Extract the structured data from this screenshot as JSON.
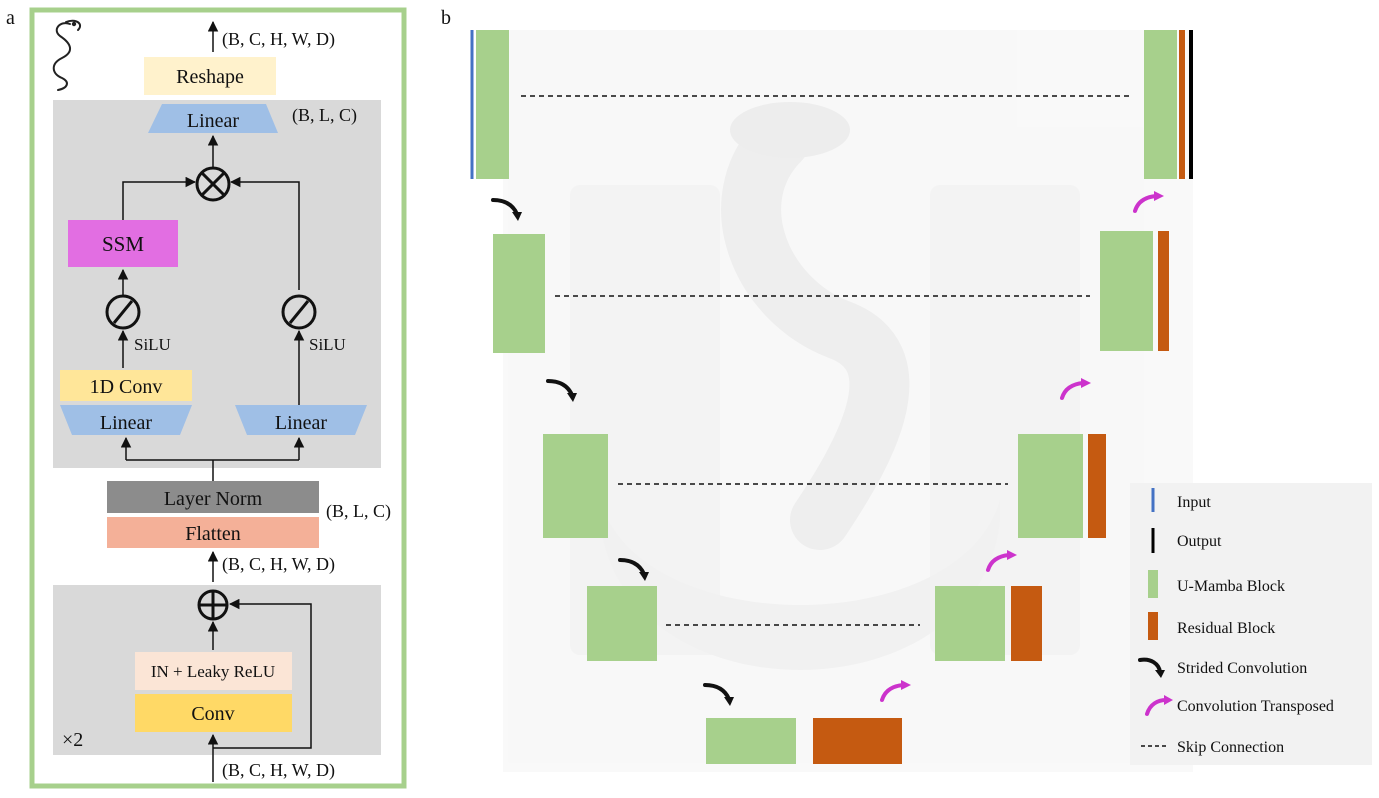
{
  "panel_a": {
    "label": "a",
    "shape_top": "(B, C, H, W, D)",
    "reshape": "Reshape",
    "shape_mamba": "(B, L, C)",
    "linear_top": "Linear",
    "ssm": "SSM",
    "silu_left": "SiLU",
    "silu_right": "SiLU",
    "conv1d": "1D Conv",
    "linear_left": "Linear",
    "linear_right": "Linear",
    "layer_norm": "Layer Norm",
    "flatten": "Flatten",
    "shape_flatten": "(B, L, C)",
    "shape_mid": "(B, C, H, W, D)",
    "in_relu": "IN + Leaky ReLU",
    "conv": "Conv",
    "repeat": "×2",
    "shape_bottom": "(B, C, H, W, D)",
    "colors": {
      "frame": "#a7d08c",
      "panel_bg": "#d9d9d9",
      "reshape": "#fff2cc",
      "linear": "#9fbfe6",
      "ssm": "#e26ee2",
      "conv1d": "#ffe699",
      "layer_norm": "#8c8c8c",
      "flatten": "#f4b098",
      "in_relu": "#fbe5d6",
      "conv": "#ffd966"
    }
  },
  "panel_b": {
    "label": "b",
    "legend": [
      {
        "text": "Input",
        "key": "input-line"
      },
      {
        "text": "Output",
        "key": "output-line"
      },
      {
        "text": "U-Mamba Block",
        "key": "umamba-swatch"
      },
      {
        "text": "Residual Block",
        "key": "residual-swatch"
      },
      {
        "text": "Strided Convolution",
        "key": "strided-arrow"
      },
      {
        "text": "Convolution Transposed",
        "key": "transposed-arrow"
      },
      {
        "text": "Skip Connection",
        "key": "skip-dash"
      }
    ],
    "colors": {
      "umamba": "#a7d08c",
      "residual": "#c55a11",
      "input": "#4472c4",
      "output": "#000000",
      "strided": "#111111",
      "transposed": "#cc33cc"
    }
  }
}
